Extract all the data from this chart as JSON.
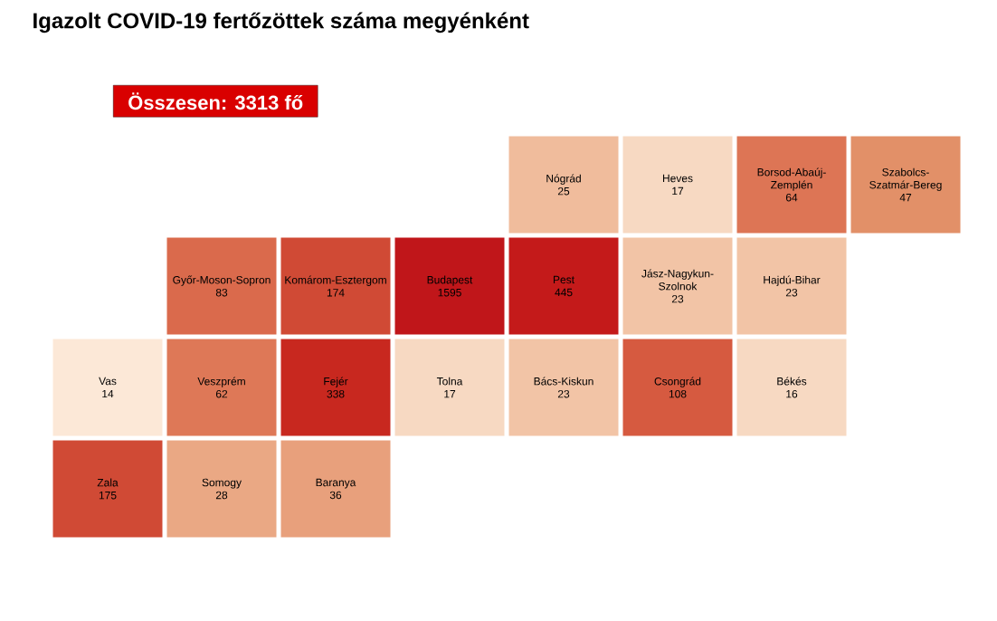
{
  "chart_data": {
    "type": "other",
    "title": "Igazolt COVID-19 fertőzöttek száma megyénként",
    "annotations": [
      "Összesen: 3313 fő"
    ],
    "data_labels": true,
    "categories": [
      "Nógrád",
      "Heves",
      "Borsod-Abaúj-Zemplén",
      "Szabolcs-Szatmár-Bereg",
      "Győr-Moson-Sopron",
      "Komárom-Esztergom",
      "Budapest",
      "Pest",
      "Jász-Nagykun-Szolnok",
      "Hajdú-Bihar",
      "Vas",
      "Veszprém",
      "Fejér",
      "Tolna",
      "Bács-Kiskun",
      "Csongrád",
      "Békés",
      "Zala",
      "Somogy",
      "Baranya"
    ],
    "values": [
      25,
      17,
      64,
      47,
      83,
      174,
      1595,
      445,
      23,
      23,
      14,
      62,
      338,
      17,
      23,
      108,
      16,
      175,
      28,
      36
    ],
    "colors": [
      "#f0bc9c",
      "#f7d9c2",
      "#dd7555",
      "#e29068",
      "#da6a4c",
      "#d04a35",
      "#c0161a",
      "#c41a1a",
      "#f2c4a6",
      "#f2c4a6",
      "#fce8d7",
      "#de7857",
      "#c8281f",
      "#f7d9c2",
      "#f2c4a6",
      "#d65a40",
      "#f7d9c2",
      "#d04a35",
      "#eaa884",
      "#e8a07c"
    ]
  }
}
